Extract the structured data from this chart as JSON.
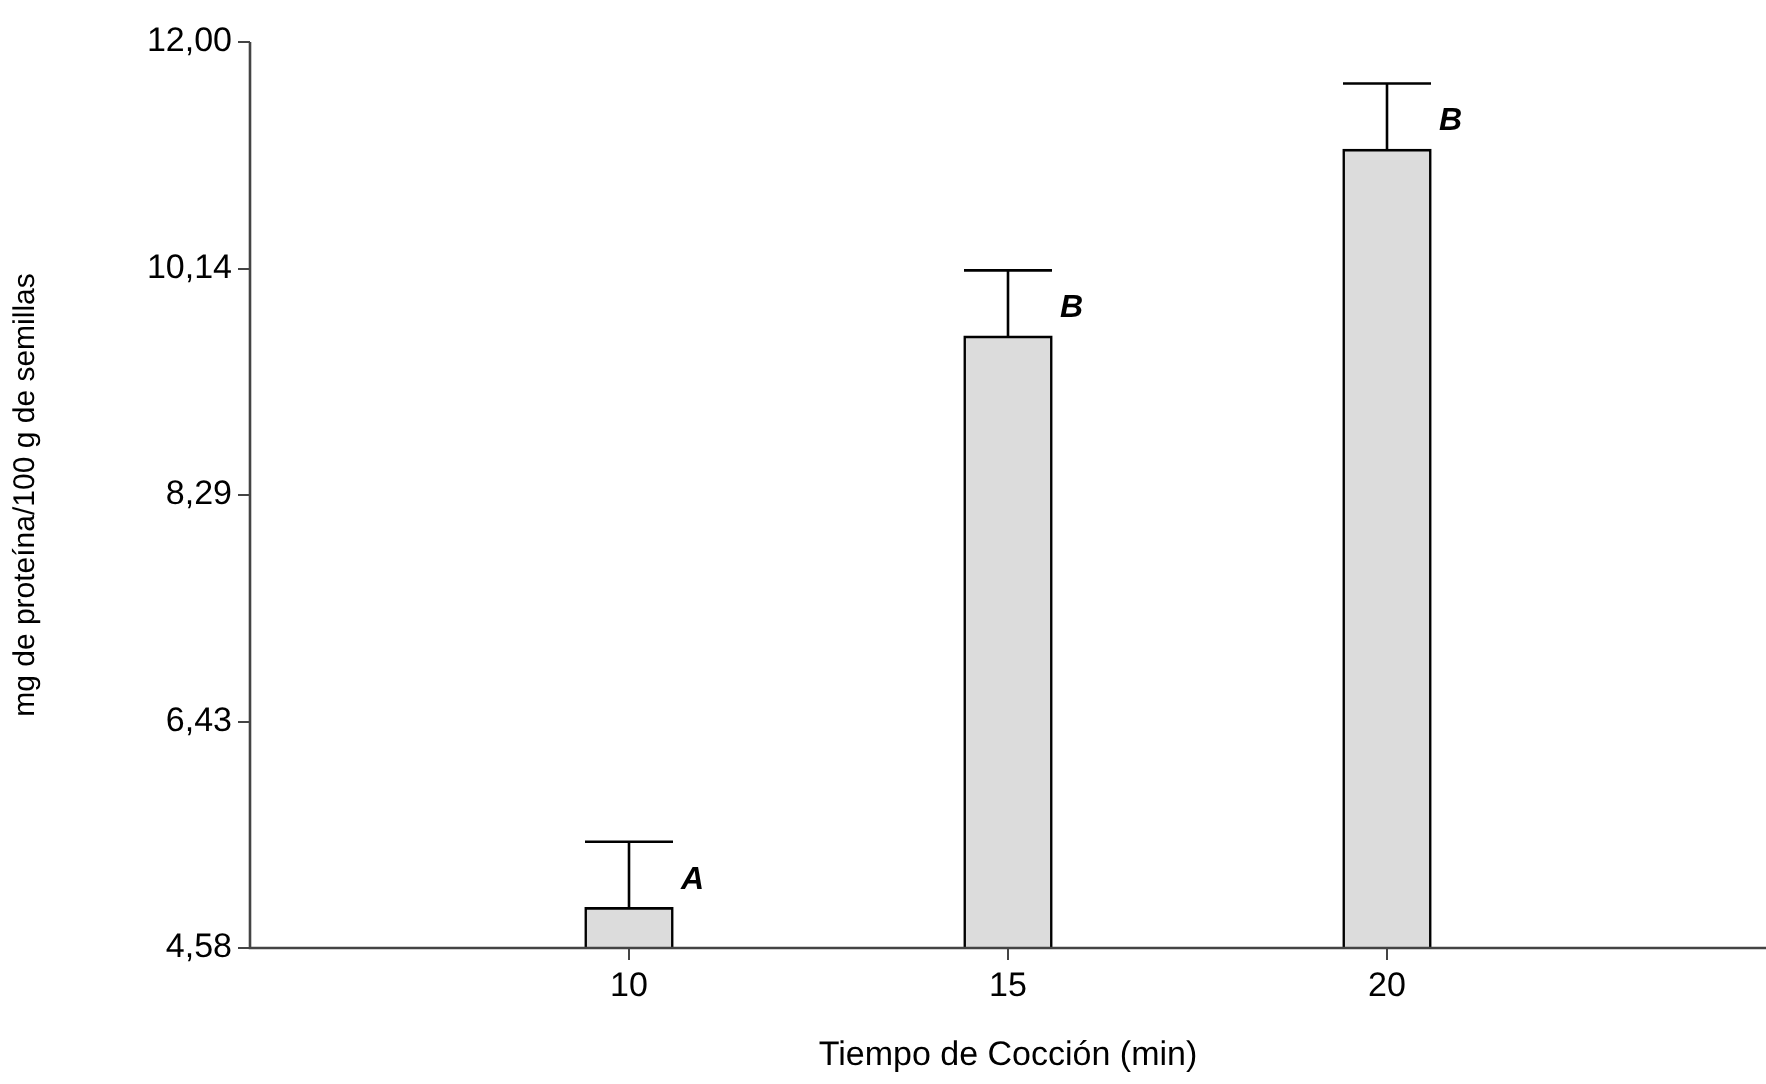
{
  "chart_data": {
    "type": "bar",
    "xlabel": "Tiempo de Cocción (min)",
    "ylabel": "mg de proteína/100 g de semillas",
    "categories": [
      "10",
      "15",
      "20"
    ],
    "values": [
      4.91,
      9.59,
      11.12
    ],
    "errors": [
      [
        4.91,
        5.45
      ],
      [
        9.59,
        10.13
      ],
      [
        11.12,
        11.66
      ]
    ],
    "color": "#dcdcdc",
    "ylim": [
      4.58,
      12.0
    ],
    "yticks": [
      {
        "value": 4.58,
        "label": "4,58"
      },
      {
        "value": 6.43,
        "label": "6,43"
      },
      {
        "value": 8.29,
        "label": "8,29"
      },
      {
        "value": 10.14,
        "label": "10,14"
      },
      {
        "value": 12.0,
        "label": "12,00"
      }
    ],
    "annotations": [
      {
        "text": "A",
        "x": "10",
        "y": 4.91
      },
      {
        "text": "B",
        "x": "15",
        "y": 9.59
      },
      {
        "text": "B",
        "x": "20",
        "y": 11.12
      }
    ],
    "grid": false,
    "legend": false
  }
}
